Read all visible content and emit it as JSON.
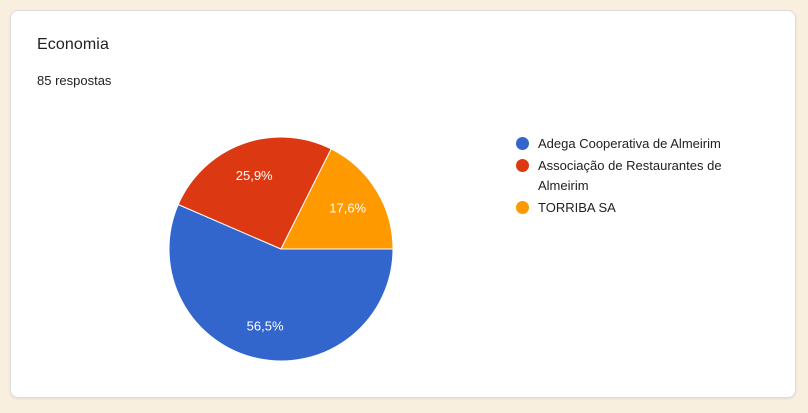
{
  "page": {
    "background_color": "#f8efdf",
    "card_border_color": "#dadce0"
  },
  "card": {
    "title": "Economia",
    "responses": "85 respostas"
  },
  "chart_data": {
    "type": "pie",
    "title": "Economia",
    "subtitle": "85 respostas",
    "total_responses": 85,
    "legend_position": "right",
    "start_angle_deg": 0,
    "direction": "clockwise",
    "slice_border_color": "#ffffff",
    "categories": [
      "Adega Cooperativa de Almeirim",
      "Associação de Restaurantes de Almeirim",
      "TORRIBA SA"
    ],
    "values": [
      56.5,
      25.9,
      17.6
    ],
    "slices": [
      {
        "label": "Adega Cooperativa de Almeirim",
        "percent": 56.5,
        "percent_label": "56,5%",
        "color": "#3366cc"
      },
      {
        "label": "Associação de Restaurantes de Almeirim",
        "percent": 25.9,
        "percent_label": "25,9%",
        "color": "#dc3912"
      },
      {
        "label": "TORRIBA SA",
        "percent": 17.6,
        "percent_label": "17,6%",
        "color": "#ff9900"
      }
    ]
  }
}
